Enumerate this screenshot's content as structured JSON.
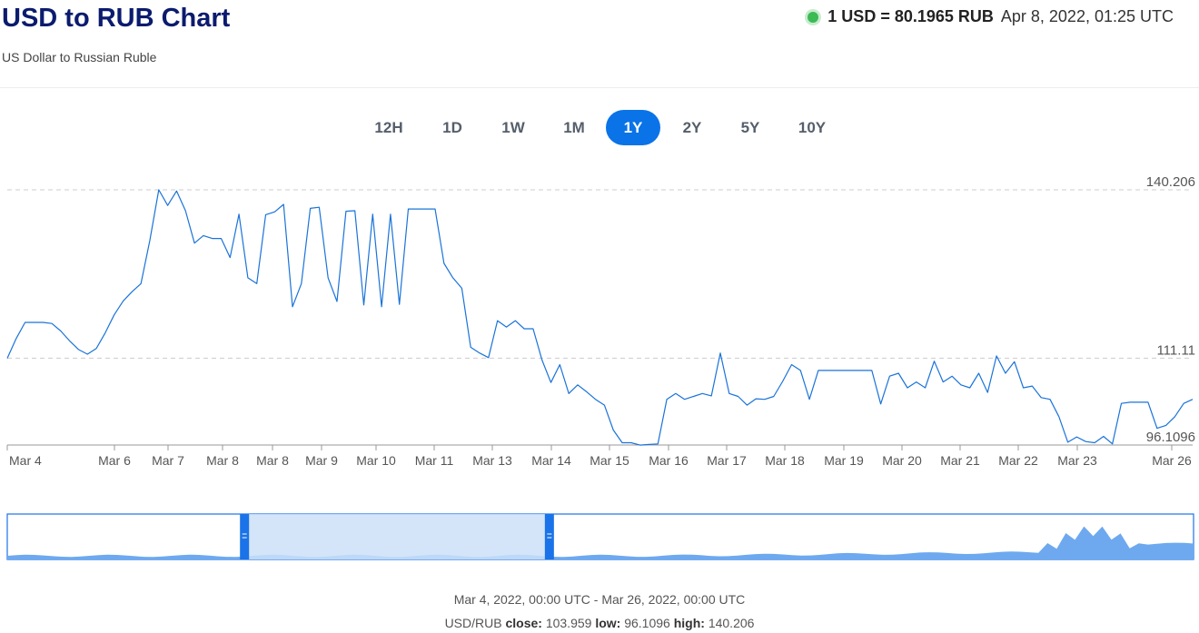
{
  "header": {
    "title": "USD to RUB Chart",
    "subtitle": "US Dollar to Russian Ruble",
    "rate_text": "1 USD = 80.1965 RUB",
    "timestamp": "Apr 8, 2022, 01:25 UTC",
    "status_color": "#3cba54"
  },
  "ranges": {
    "items": [
      "12H",
      "1D",
      "1W",
      "1M",
      "1Y",
      "2Y",
      "5Y",
      "10Y"
    ],
    "active": "1Y",
    "active_color": "#0a73e8"
  },
  "chart_data": {
    "type": "line",
    "title": "",
    "xlabel": "",
    "ylabel": "",
    "ylim": [
      96.1096,
      140.206
    ],
    "y_ticks": [
      "140.206",
      "111.11",
      "96.1096"
    ],
    "x_tick_labels": [
      "Mar 4",
      "Mar 6",
      "Mar 7",
      "Mar 8",
      "Mar 8",
      "Mar 9",
      "Mar 10",
      "Mar 11",
      "Mar 13",
      "Mar 14",
      "Mar 15",
      "Mar 16",
      "Mar 17",
      "Mar 18",
      "Mar 19",
      "Mar 20",
      "Mar 21",
      "Mar 22",
      "Mar 23",
      "Mar 26"
    ],
    "grid": "horizontal dashed",
    "line_color": "#1a73d9",
    "series": [
      {
        "values": [
          111.1,
          114.5,
          117.3,
          117.3,
          117.3,
          117.1,
          115.8,
          114.1,
          112.6,
          111.8,
          112.8,
          115.5,
          118.6,
          121.0,
          122.6,
          124.0,
          131.5,
          140.2,
          137.5,
          140.0,
          136.6,
          131.0,
          132.3,
          131.8,
          131.8,
          128.5,
          136.0,
          125.0,
          124.0,
          135.9,
          136.4,
          137.7,
          120.0,
          124.0,
          137.0,
          137.2,
          125.0,
          120.9,
          136.5,
          136.6,
          120.3,
          136.0,
          120.0,
          136.0,
          120.4,
          136.9,
          136.9,
          136.9,
          136.9,
          127.5,
          125.0,
          123.2,
          113.0,
          112.0,
          111.2,
          117.6,
          116.5,
          117.6,
          116.2,
          116.2,
          110.8,
          106.9,
          110.0,
          105.0,
          106.5,
          105.3,
          104.0,
          103.0,
          98.7,
          96.5,
          96.5,
          96.1,
          96.2,
          96.3,
          104.0,
          105.0,
          104.0,
          104.5,
          105.0,
          104.6,
          112.0,
          105.0,
          104.5,
          103.0,
          104.1,
          104.0,
          104.5,
          107.1,
          110.0,
          109.0,
          104.0,
          109.0,
          109.0,
          109.0,
          109.0,
          109.0,
          109.0,
          109.0,
          103.2,
          108.0,
          108.5,
          106.0,
          107.0,
          106.0,
          110.6,
          107.0,
          108.0,
          106.5,
          106.0,
          108.5,
          105.2,
          111.5,
          108.5,
          110.5,
          106.0,
          106.3,
          104.3,
          104.0,
          101.0,
          96.6,
          97.5,
          96.7,
          96.5,
          97.6,
          96.3,
          103.3,
          103.5,
          103.5,
          103.5,
          99.0,
          99.5,
          101.0,
          103.3,
          104.0
        ]
      }
    ]
  },
  "navigator": {
    "area_color": "#6ea9ef",
    "selection_color": "#cce0f8",
    "handle_color": "#1a73e8",
    "selection_start": 0.2,
    "selection_end": 0.457
  },
  "footer": {
    "period": "Mar 4, 2022, 00:00 UTC - Mar 26, 2022, 00:00 UTC",
    "pair": "USD/RUB",
    "close_label": "close:",
    "close": "103.959",
    "low_label": "low:",
    "low": "96.1096",
    "high_label": "high:",
    "high": "140.206"
  }
}
